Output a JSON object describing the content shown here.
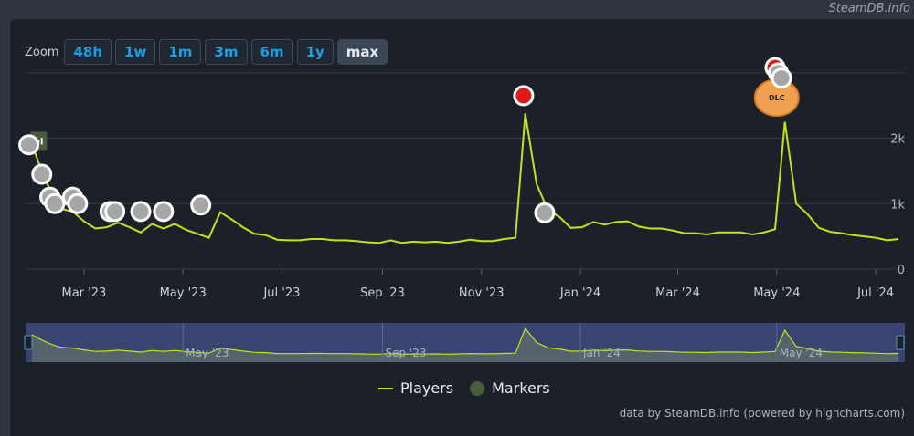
{
  "watermark": "SteamDB.info",
  "zoom": {
    "label": "Zoom",
    "buttons": [
      "48h",
      "1w",
      "1m",
      "3m",
      "6m",
      "1y",
      "max"
    ],
    "active": "max"
  },
  "legend": {
    "players": "Players",
    "markers": "Markers"
  },
  "credits": "data by SteamDB.info (powered by highcharts.com)",
  "colors": {
    "line": "#c4e21a",
    "grid": "#343c48",
    "navigator_bg": "#3a4470"
  },
  "chart_data": {
    "type": "line",
    "ylim": [
      0,
      2900
    ],
    "y_ticks": [
      0,
      1000,
      2000
    ],
    "y_tick_labels": [
      "0",
      "1k",
      "2k"
    ],
    "grid": true,
    "legend_position": "bottom-center",
    "x_tick_labels": [
      "Mar '23",
      "May '23",
      "Jul '23",
      "Sep '23",
      "Nov '23",
      "Jan '24",
      "Mar '24",
      "May '24",
      "Jul '24"
    ],
    "x_tick_dates": [
      "2023-03-01",
      "2023-05-01",
      "2023-07-01",
      "2023-09-01",
      "2023-11-01",
      "2024-01-01",
      "2024-03-01",
      "2024-05-01",
      "2024-07-01"
    ],
    "navigator_tick_labels": [
      "May '23",
      "Sep '23",
      "Jan '24",
      "May '24"
    ],
    "navigator_tick_dates": [
      "2023-05-01",
      "2023-09-01",
      "2024-01-01",
      "2024-05-01"
    ],
    "series": [
      {
        "name": "Players",
        "points": [
          [
            "2023-01-28",
            1900
          ],
          [
            "2023-02-03",
            1500
          ],
          [
            "2023-02-09",
            1150
          ],
          [
            "2023-02-15",
            920
          ],
          [
            "2023-02-22",
            880
          ],
          [
            "2023-03-01",
            730
          ],
          [
            "2023-03-08",
            620
          ],
          [
            "2023-03-15",
            640
          ],
          [
            "2023-03-22",
            710
          ],
          [
            "2023-03-29",
            640
          ],
          [
            "2023-04-05",
            560
          ],
          [
            "2023-04-12",
            690
          ],
          [
            "2023-04-19",
            620
          ],
          [
            "2023-04-26",
            690
          ],
          [
            "2023-05-03",
            600
          ],
          [
            "2023-05-10",
            540
          ],
          [
            "2023-05-17",
            480
          ],
          [
            "2023-05-24",
            870
          ],
          [
            "2023-05-31",
            760
          ],
          [
            "2023-06-07",
            640
          ],
          [
            "2023-06-14",
            540
          ],
          [
            "2023-06-21",
            520
          ],
          [
            "2023-06-28",
            450
          ],
          [
            "2023-07-05",
            440
          ],
          [
            "2023-07-12",
            440
          ],
          [
            "2023-07-19",
            460
          ],
          [
            "2023-07-26",
            460
          ],
          [
            "2023-08-02",
            440
          ],
          [
            "2023-08-09",
            440
          ],
          [
            "2023-08-16",
            430
          ],
          [
            "2023-08-23",
            410
          ],
          [
            "2023-08-30",
            400
          ],
          [
            "2023-09-06",
            440
          ],
          [
            "2023-09-13",
            400
          ],
          [
            "2023-09-20",
            420
          ],
          [
            "2023-09-27",
            410
          ],
          [
            "2023-10-04",
            420
          ],
          [
            "2023-10-11",
            400
          ],
          [
            "2023-10-18",
            420
          ],
          [
            "2023-10-25",
            450
          ],
          [
            "2023-11-01",
            430
          ],
          [
            "2023-11-08",
            430
          ],
          [
            "2023-11-15",
            460
          ],
          [
            "2023-11-22",
            480
          ],
          [
            "2023-11-28",
            2380
          ],
          [
            "2023-12-05",
            1300
          ],
          [
            "2023-12-12",
            900
          ],
          [
            "2023-12-19",
            800
          ],
          [
            "2023-12-26",
            630
          ],
          [
            "2024-01-02",
            640
          ],
          [
            "2024-01-09",
            720
          ],
          [
            "2024-01-16",
            680
          ],
          [
            "2024-01-23",
            720
          ],
          [
            "2024-01-30",
            730
          ],
          [
            "2024-02-06",
            650
          ],
          [
            "2024-02-13",
            620
          ],
          [
            "2024-02-20",
            620
          ],
          [
            "2024-02-27",
            590
          ],
          [
            "2024-03-05",
            550
          ],
          [
            "2024-03-12",
            550
          ],
          [
            "2024-03-19",
            530
          ],
          [
            "2024-03-26",
            560
          ],
          [
            "2024-04-02",
            560
          ],
          [
            "2024-04-09",
            560
          ],
          [
            "2024-04-16",
            530
          ],
          [
            "2024-04-23",
            560
          ],
          [
            "2024-04-30",
            610
          ],
          [
            "2024-05-06",
            2250
          ],
          [
            "2024-05-13",
            1000
          ],
          [
            "2024-05-20",
            840
          ],
          [
            "2024-05-27",
            630
          ],
          [
            "2024-06-03",
            570
          ],
          [
            "2024-06-10",
            550
          ],
          [
            "2024-06-17",
            520
          ],
          [
            "2024-06-24",
            500
          ],
          [
            "2024-07-01",
            480
          ],
          [
            "2024-07-08",
            440
          ],
          [
            "2024-07-15",
            460
          ]
        ]
      }
    ],
    "markers": [
      {
        "date": "2023-01-26",
        "y": 1900,
        "kind": "gray"
      },
      {
        "date": "2023-02-03",
        "y": 1450,
        "kind": "gray"
      },
      {
        "date": "2023-02-08",
        "y": 1100,
        "kind": "gray"
      },
      {
        "date": "2023-02-11",
        "y": 1000,
        "kind": "gray"
      },
      {
        "date": "2023-02-22",
        "y": 1100,
        "kind": "gray"
      },
      {
        "date": "2023-02-25",
        "y": 1000,
        "kind": "gray"
      },
      {
        "date": "2023-03-17",
        "y": 880,
        "kind": "gray"
      },
      {
        "date": "2023-03-20",
        "y": 880,
        "kind": "gray"
      },
      {
        "date": "2023-04-05",
        "y": 880,
        "kind": "gray"
      },
      {
        "date": "2023-04-19",
        "y": 880,
        "kind": "gray"
      },
      {
        "date": "2023-05-12",
        "y": 980,
        "kind": "gray"
      },
      {
        "date": "2023-11-27",
        "y": 2650,
        "kind": "red"
      },
      {
        "date": "2023-12-10",
        "y": 860,
        "kind": "gray"
      },
      {
        "date": "2024-04-30",
        "y": 3080,
        "kind": "red"
      },
      {
        "date": "2024-05-02",
        "y": 3000,
        "kind": "gray"
      },
      {
        "date": "2024-05-04",
        "y": 2920,
        "kind": "gray"
      }
    ],
    "flags": [
      {
        "date": "2024-05-01",
        "label": "DLC",
        "kind": "orange"
      },
      {
        "date": "2023-01-27",
        "label": "el",
        "kind": "green"
      }
    ]
  }
}
